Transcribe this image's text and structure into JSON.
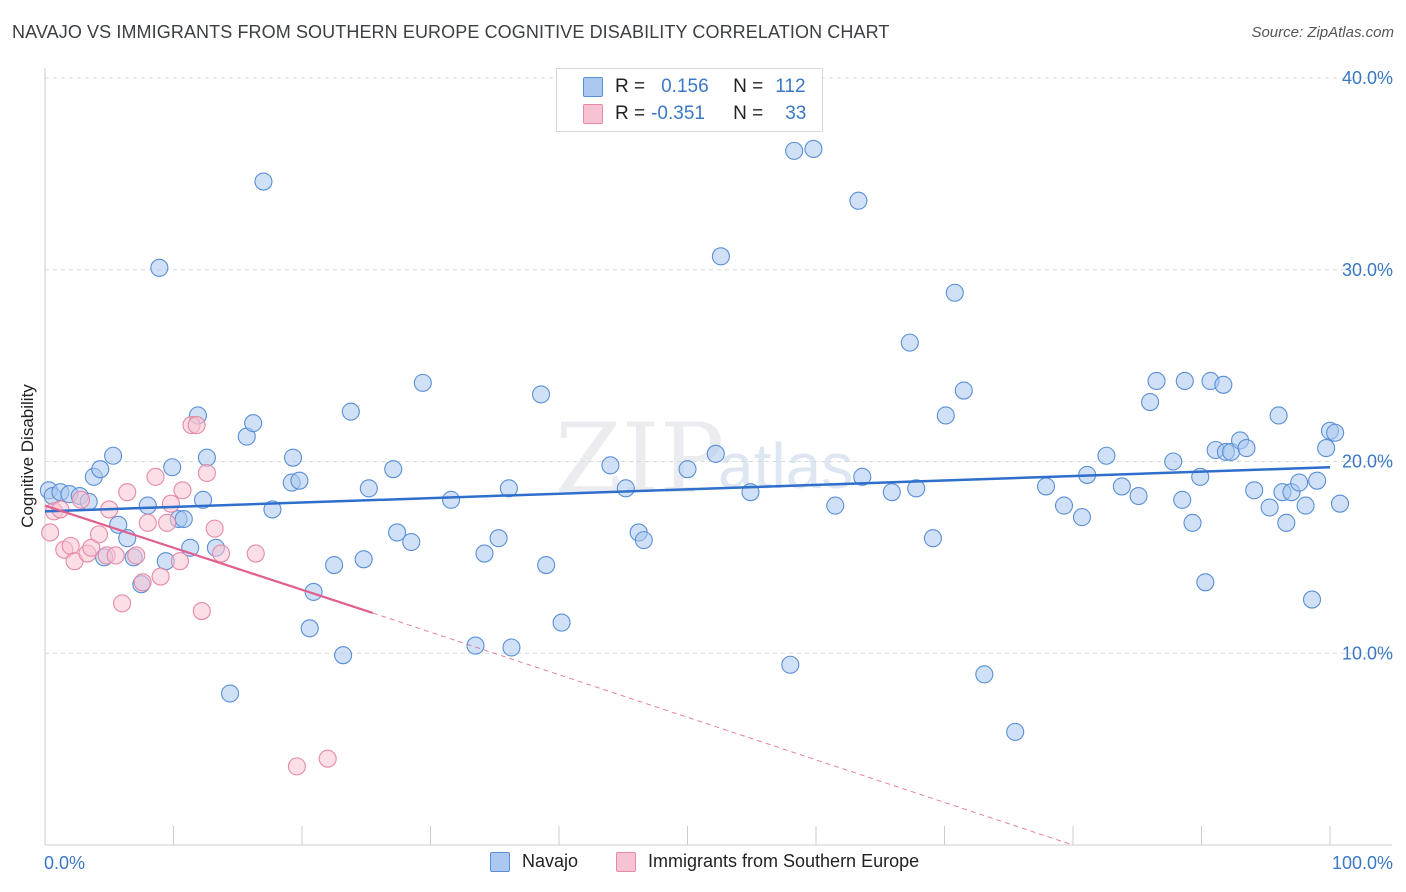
{
  "title": "NAVAJO VS IMMIGRANTS FROM SOUTHERN EUROPE COGNITIVE DISABILITY CORRELATION CHART",
  "source": "Source: ZipAtlas.com",
  "watermark": {
    "zip": "ZIP",
    "atlas": "atlas"
  },
  "legend": {
    "r_label": "R =",
    "n_label": "N =",
    "rows": [
      {
        "name": "Navajo",
        "r": "0.156",
        "n": "112",
        "fill": "#aac8f0",
        "stroke": "#5a8fd6"
      },
      {
        "name": "Immigrants from Southern Europe",
        "r": "-0.351",
        "n": "33",
        "fill": "#f7c3d2",
        "stroke": "#e58aa6"
      }
    ]
  },
  "colors": {
    "blue_line": "#2f6fcc",
    "pink_line": "#e06090",
    "grid": "#d5d9de",
    "axis_text": "#3b78c4"
  },
  "chart_data": {
    "type": "scatter",
    "title": "NAVAJO VS IMMIGRANTS FROM SOUTHERN EUROPE COGNITIVE DISABILITY CORRELATION CHART",
    "xlabel": "",
    "ylabel": "Cognitive Disability",
    "xlim": [
      0,
      100
    ],
    "ylim": [
      0,
      40
    ],
    "x_tick_labels": [
      "0.0%",
      "100.0%"
    ],
    "y_ticks": [
      10,
      20,
      30,
      40
    ],
    "y_tick_labels": [
      "10.0%",
      "20.0%",
      "30.0%",
      "40.0%"
    ],
    "grid": true,
    "series": [
      {
        "name": "Navajo",
        "R": 0.156,
        "N": 112,
        "trend": {
          "x0": 0,
          "y0": 17.4,
          "x1": 100,
          "y1": 19.7
        },
        "points": [
          [
            0.3,
            18.5
          ],
          [
            0.6,
            18.2
          ],
          [
            1.2,
            18.4
          ],
          [
            1.9,
            18.3
          ],
          [
            2.7,
            18.2
          ],
          [
            3.4,
            17.9
          ],
          [
            3.8,
            19.2
          ],
          [
            4.3,
            19.6
          ],
          [
            4.6,
            15.0
          ],
          [
            5.3,
            20.3
          ],
          [
            5.7,
            16.7
          ],
          [
            6.4,
            16.0
          ],
          [
            6.9,
            15.0
          ],
          [
            7.5,
            13.6
          ],
          [
            8.0,
            17.7
          ],
          [
            8.9,
            30.1
          ],
          [
            9.4,
            14.8
          ],
          [
            9.9,
            19.7
          ],
          [
            10.4,
            17.0
          ],
          [
            10.8,
            17.0
          ],
          [
            11.3,
            15.5
          ],
          [
            11.9,
            22.4
          ],
          [
            12.3,
            18.0
          ],
          [
            12.6,
            20.2
          ],
          [
            13.3,
            15.5
          ],
          [
            14.4,
            7.9
          ],
          [
            15.7,
            21.3
          ],
          [
            16.2,
            22.0
          ],
          [
            17.0,
            34.6
          ],
          [
            17.7,
            17.5
          ],
          [
            19.2,
            18.9
          ],
          [
            19.3,
            20.2
          ],
          [
            19.8,
            19.0
          ],
          [
            20.6,
            11.3
          ],
          [
            20.9,
            13.2
          ],
          [
            22.5,
            14.6
          ],
          [
            23.2,
            9.9
          ],
          [
            23.8,
            22.6
          ],
          [
            24.8,
            14.9
          ],
          [
            25.2,
            18.6
          ],
          [
            27.1,
            19.6
          ],
          [
            27.4,
            16.3
          ],
          [
            28.5,
            15.8
          ],
          [
            29.4,
            24.1
          ],
          [
            31.6,
            18.0
          ],
          [
            33.5,
            10.4
          ],
          [
            34.2,
            15.2
          ],
          [
            35.3,
            16.0
          ],
          [
            36.1,
            18.6
          ],
          [
            36.3,
            10.3
          ],
          [
            38.6,
            23.5
          ],
          [
            39.0,
            14.6
          ],
          [
            40.2,
            11.6
          ],
          [
            44.0,
            19.8
          ],
          [
            45.2,
            18.6
          ],
          [
            46.2,
            16.3
          ],
          [
            46.6,
            15.9
          ],
          [
            50.0,
            19.6
          ],
          [
            52.6,
            30.7
          ],
          [
            52.2,
            20.4
          ],
          [
            54.9,
            18.4
          ],
          [
            58.0,
            9.4
          ],
          [
            59.8,
            36.3
          ],
          [
            61.5,
            17.7
          ],
          [
            63.3,
            33.6
          ],
          [
            63.6,
            19.2
          ],
          [
            65.9,
            18.4
          ],
          [
            67.3,
            26.2
          ],
          [
            67.8,
            18.6
          ],
          [
            69.1,
            16.0
          ],
          [
            70.1,
            22.4
          ],
          [
            70.8,
            28.8
          ],
          [
            71.5,
            23.7
          ],
          [
            73.1,
            8.9
          ],
          [
            75.5,
            5.9
          ],
          [
            77.9,
            18.7
          ],
          [
            79.3,
            17.7
          ],
          [
            80.7,
            17.1
          ],
          [
            81.1,
            19.3
          ],
          [
            82.6,
            20.3
          ],
          [
            83.8,
            18.7
          ],
          [
            85.1,
            18.2
          ],
          [
            86.0,
            23.1
          ],
          [
            86.5,
            24.2
          ],
          [
            87.8,
            20.0
          ],
          [
            88.5,
            18.0
          ],
          [
            88.7,
            24.2
          ],
          [
            89.3,
            16.8
          ],
          [
            89.9,
            19.2
          ],
          [
            90.3,
            13.7
          ],
          [
            90.7,
            24.2
          ],
          [
            91.1,
            20.6
          ],
          [
            91.7,
            24.0
          ],
          [
            91.9,
            20.5
          ],
          [
            92.3,
            20.5
          ],
          [
            93.0,
            21.1
          ],
          [
            93.5,
            20.7
          ],
          [
            94.1,
            18.5
          ],
          [
            95.3,
            17.6
          ],
          [
            96.0,
            22.4
          ],
          [
            96.3,
            18.4
          ],
          [
            96.6,
            16.8
          ],
          [
            97.0,
            18.4
          ],
          [
            97.6,
            18.9
          ],
          [
            98.1,
            17.7
          ],
          [
            98.6,
            12.8
          ],
          [
            99.0,
            19.0
          ],
          [
            99.7,
            20.7
          ],
          [
            100.0,
            21.6
          ],
          [
            100.4,
            21.5
          ],
          [
            101.2,
            17.8
          ],
          [
            58.3,
            36.2
          ]
        ]
      },
      {
        "name": "Immigrants from Southern Europe",
        "R": -0.351,
        "N": 33,
        "trend": {
          "x0": 0,
          "y0": 17.7,
          "x1": 25.5,
          "y1": 12.1,
          "dashed_to": {
            "x": 80,
            "y": 0
          }
        },
        "points": [
          [
            0.4,
            16.3
          ],
          [
            0.7,
            17.4
          ],
          [
            1.2,
            17.5
          ],
          [
            1.5,
            15.4
          ],
          [
            2.0,
            15.6
          ],
          [
            2.3,
            14.8
          ],
          [
            2.8,
            18.0
          ],
          [
            3.3,
            15.2
          ],
          [
            3.6,
            15.5
          ],
          [
            4.2,
            16.2
          ],
          [
            4.8,
            15.1
          ],
          [
            5.0,
            17.5
          ],
          [
            5.5,
            15.1
          ],
          [
            6.0,
            12.6
          ],
          [
            6.4,
            18.4
          ],
          [
            7.1,
            15.1
          ],
          [
            7.6,
            13.7
          ],
          [
            8.0,
            16.8
          ],
          [
            8.6,
            19.2
          ],
          [
            9.0,
            14.0
          ],
          [
            9.5,
            16.8
          ],
          [
            9.8,
            17.8
          ],
          [
            10.5,
            14.8
          ],
          [
            10.7,
            18.5
          ],
          [
            11.4,
            21.9
          ],
          [
            11.8,
            21.9
          ],
          [
            12.2,
            12.2
          ],
          [
            12.6,
            19.4
          ],
          [
            13.2,
            16.5
          ],
          [
            13.7,
            15.2
          ],
          [
            16.4,
            15.2
          ],
          [
            19.6,
            4.1
          ],
          [
            22.0,
            4.5
          ]
        ]
      }
    ]
  }
}
